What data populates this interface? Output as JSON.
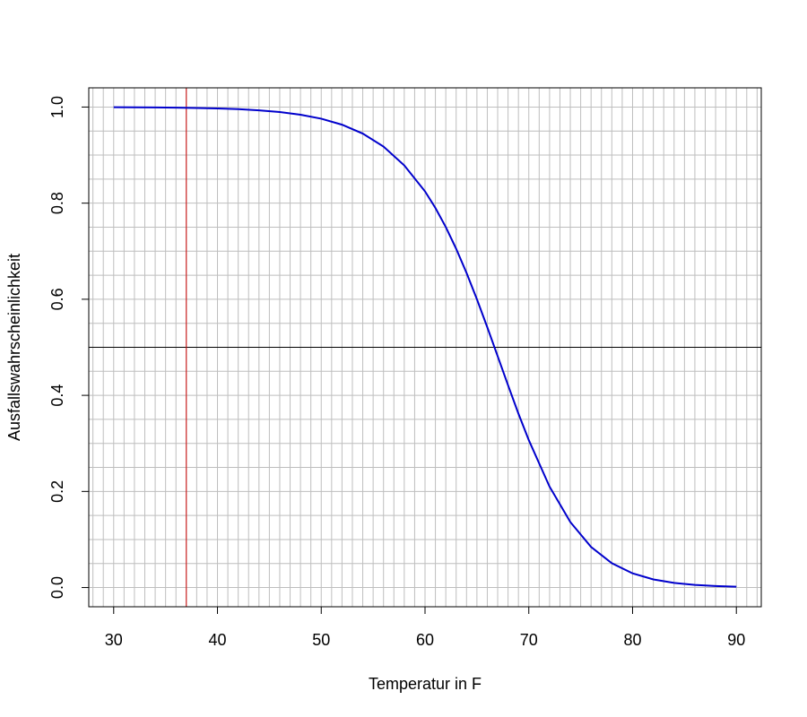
{
  "chart_data": {
    "type": "line",
    "xlabel": "Temperatur in F",
    "ylabel": "Ausfallswahrscheinlichkeit",
    "xlim": [
      27.6,
      92.4
    ],
    "ylim": [
      -0.04,
      1.04
    ],
    "x_ticks": [
      30,
      40,
      50,
      60,
      70,
      80,
      90
    ],
    "x_tick_labels": [
      "30",
      "40",
      "50",
      "60",
      "70",
      "80",
      "90"
    ],
    "y_ticks": [
      0.0,
      0.2,
      0.4,
      0.6,
      0.8,
      1.0
    ],
    "y_tick_labels": [
      "0.0",
      "0.2",
      "0.4",
      "0.6",
      "0.8",
      "1.0"
    ],
    "grid": true,
    "grid_step_x": 1,
    "grid_step_y": 0.05,
    "colors": {
      "curve": "#0000cc",
      "vertical_line": "#cc0000",
      "horizontal_line": "#000000",
      "grid": "#bebebe"
    },
    "reference_lines": {
      "horizontal_y": 0.5,
      "vertical_x": 37
    },
    "series": [
      {
        "x": [
          30,
          32,
          34,
          36,
          38,
          40,
          42,
          44,
          46,
          48,
          50,
          52,
          54,
          56,
          58,
          60,
          61,
          62,
          63,
          64,
          65,
          66,
          67,
          68,
          69,
          70,
          72,
          74,
          76,
          78,
          80,
          82,
          84,
          86,
          88,
          90
        ],
        "y": [
          0.9996,
          0.9994,
          0.9992,
          0.9988,
          0.9981,
          0.9971,
          0.9956,
          0.9932,
          0.9896,
          0.9841,
          0.9758,
          0.9633,
          0.9448,
          0.9177,
          0.8786,
          0.8245,
          0.79,
          0.7503,
          0.7051,
          0.6548,
          0.6,
          0.5418,
          0.4815,
          0.421,
          0.362,
          0.3068,
          0.21,
          0.1363,
          0.0845,
          0.0506,
          0.0295,
          0.0169,
          0.0096,
          0.0054,
          0.0031,
          0.0017
        ]
      }
    ]
  }
}
